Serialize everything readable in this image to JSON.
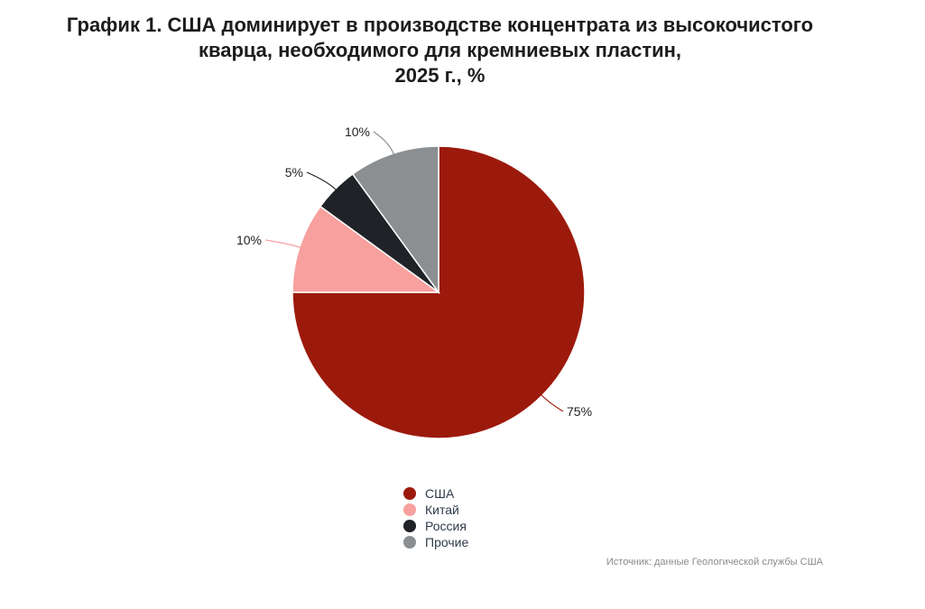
{
  "title": {
    "line1": "График 1. США доминирует в производстве концентрата из высокочистого",
    "line2": "кварца, необходимого для кремниевых пластин,",
    "line3": "2025 г., %"
  },
  "source": "Источник: данные Геологической службы США",
  "chart_data": {
    "type": "pie",
    "title": "График 1. США доминирует в производстве концентрата из высокочистого кварца, необходимого для кремниевых пластин, 2025 г., %",
    "unit": "%",
    "slices": [
      {
        "label": "США",
        "value": 75,
        "display": "75%",
        "color": "#9c1a0c"
      },
      {
        "label": "Китай",
        "value": 10,
        "display": "10%",
        "color": "#f7a09d"
      },
      {
        "label": "Россия",
        "value": 5,
        "display": "5%",
        "color": "#1f2226"
      },
      {
        "label": "Прочие",
        "value": 10,
        "display": "10%",
        "color": "#8c8f92"
      }
    ],
    "legend_position": "bottom-center"
  }
}
